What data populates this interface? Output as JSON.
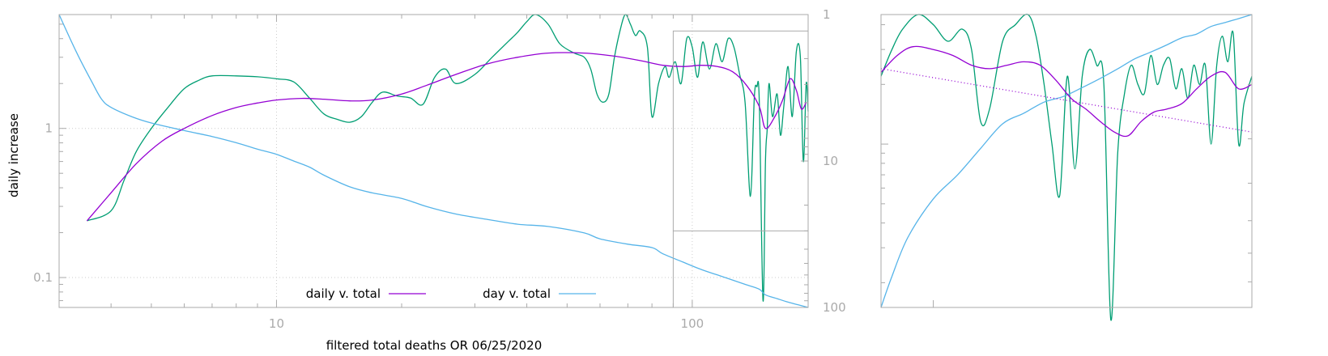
{
  "chart_data": [
    {
      "type": "line",
      "xlabel": "filtered total deaths OR 06/25/2020",
      "ylabel": "daily increase",
      "x_scale": "log",
      "y_scale": "log",
      "xlim": [
        3,
        190
      ],
      "ylim": [
        0.063,
        5.8
      ],
      "y2_scale": "log",
      "y2_reversed": true,
      "y2lim": [
        1,
        100
      ],
      "x_tick_labels": [
        "10",
        "100"
      ],
      "y_tick_labels": [
        "1",
        "0.1"
      ],
      "y2_tick_labels": [
        "1",
        "10",
        "100"
      ],
      "grid": true,
      "legend_position": "bottom-center",
      "legend": [
        "daily v. total",
        "day v. total"
      ],
      "colors": {
        "daily": "#9400d3",
        "day": "#56b4e9",
        "raw": "#009e73",
        "frame": "#aaaaaa",
        "grid": "#cccccc"
      },
      "series": [
        {
          "name": "daily v. total",
          "axis": "y",
          "x": [
            3.5,
            4.0,
            4.6,
            5.3,
            6.0,
            7.0,
            8.0,
            9.0,
            10.0,
            11.5,
            13.0,
            15.0,
            17.0,
            20.0,
            23.0,
            27.0,
            32.0,
            38.0,
            45.0,
            55.0,
            65.0,
            75.0,
            85.0,
            95.0,
            105.0,
            115.0,
            125.0,
            135.0,
            145.0,
            150.0,
            158.0,
            165.0,
            172.0,
            178.0,
            183.0,
            188.0
          ],
          "y": [
            0.24,
            0.37,
            0.58,
            0.82,
            1.0,
            1.22,
            1.38,
            1.48,
            1.55,
            1.59,
            1.57,
            1.53,
            1.55,
            1.7,
            1.95,
            2.3,
            2.7,
            3.0,
            3.2,
            3.2,
            3.05,
            2.85,
            2.65,
            2.6,
            2.65,
            2.6,
            2.4,
            1.95,
            1.4,
            1.0,
            1.2,
            1.55,
            2.15,
            1.8,
            1.35,
            1.5
          ]
        },
        {
          "name": "day v. total",
          "axis": "y2",
          "x": [
            3.0,
            3.3,
            3.6,
            3.8,
            4.0,
            4.5,
            5.0,
            6.0,
            7.0,
            8.0,
            9.0,
            10.0,
            11.0,
            12.0,
            13.0,
            15.0,
            17.0,
            20.0,
            23.0,
            27.0,
            32.0,
            38.0,
            45.0,
            55.0,
            60.0,
            70.0,
            80.0,
            85.0,
            95.0,
            105.0,
            115.0,
            125.0,
            135.0,
            145.0,
            150.0,
            160.0,
            170.0,
            180.0,
            190.0
          ],
          "y": [
            1.0,
            1.8,
            2.9,
            3.8,
            4.3,
            5.0,
            5.5,
            6.2,
            6.8,
            7.5,
            8.3,
            9.0,
            10.0,
            11.0,
            12.5,
            15.0,
            16.5,
            18.0,
            20.5,
            23.0,
            25.0,
            27.0,
            28.0,
            31.0,
            34.0,
            37.0,
            39.0,
            43.0,
            49.0,
            55.0,
            60.0,
            65.0,
            70.0,
            75.0,
            82.0,
            87.0,
            92.0,
            96.0,
            100.0
          ]
        },
        {
          "name": "",
          "axis": "y",
          "x": [
            3.5,
            4.0,
            4.3,
            4.6,
            5.0,
            5.5,
            6.0,
            6.5,
            7.0,
            8.0,
            9.0,
            10.0,
            11.0,
            12.0,
            13.0,
            14.0,
            15.0,
            16.0,
            17.0,
            18.0,
            19.5,
            21.0,
            22.5,
            24.0,
            25.5,
            27.0,
            30.0,
            33.0,
            36.0,
            38.0,
            40.0,
            42.0,
            45.0,
            48.0,
            52.0,
            55.0,
            57.0,
            59.0,
            61.0,
            63.0,
            65.0,
            67.0,
            69.0,
            71.0,
            73.0,
            75.0,
            78.0,
            80.0,
            83.0,
            86.0,
            88.0,
            91.0,
            94.0,
            97.0,
            100.0,
            103.0,
            106.0,
            110.0,
            114.0,
            118.0,
            122.0,
            126.0,
            130.0,
            134.0,
            138.0,
            141.0,
            143.0,
            145.0,
            148.0,
            150.0,
            151.5,
            153.0,
            156.0,
            160.0,
            163.0,
            166.0,
            170.0,
            174.0,
            178.0,
            182.0,
            185.0,
            188.0,
            190.0
          ],
          "y": [
            0.24,
            0.28,
            0.45,
            0.7,
            1.0,
            1.4,
            1.85,
            2.1,
            2.25,
            2.25,
            2.22,
            2.15,
            2.05,
            1.6,
            1.25,
            1.15,
            1.1,
            1.2,
            1.5,
            1.75,
            1.65,
            1.6,
            1.45,
            2.2,
            2.5,
            2.0,
            2.3,
            3.0,
            3.8,
            4.4,
            5.2,
            5.8,
            5.0,
            3.7,
            3.2,
            3.0,
            2.5,
            1.7,
            1.5,
            1.7,
            3.0,
            4.5,
            5.8,
            5.0,
            4.2,
            4.5,
            3.5,
            1.2,
            2.0,
            2.6,
            2.2,
            2.8,
            2.0,
            4.0,
            3.5,
            2.2,
            3.8,
            2.5,
            3.7,
            2.8,
            4.0,
            3.5,
            2.3,
            1.5,
            0.35,
            1.6,
            1.9,
            1.5,
            0.07,
            0.6,
            1.0,
            2.0,
            1.2,
            1.7,
            0.9,
            1.4,
            2.6,
            1.2,
            3.3,
            3.0,
            0.6,
            2.0,
            1.3
          ]
        }
      ]
    },
    {
      "type": "line",
      "x_scale": "log",
      "y_scale": "log",
      "xlim": [
        90,
        190
      ],
      "ylim": [
        0.15,
        4.5
      ],
      "y2_scale": "log",
      "y2_reversed": true,
      "y2lim": [
        30,
        100
      ],
      "series": [
        {
          "name": "",
          "axis": "y",
          "x": [
            90,
            93,
            96,
            100,
            104,
            108,
            112,
            116,
            120,
            124,
            128,
            132,
            136,
            140,
            144,
            148,
            152,
            156,
            160,
            165,
            170,
            175,
            180,
            185,
            190
          ],
          "y": [
            2.3,
            2.8,
            3.1,
            3.0,
            2.8,
            2.5,
            2.4,
            2.5,
            2.6,
            2.5,
            2.1,
            1.7,
            1.5,
            1.3,
            1.15,
            1.1,
            1.3,
            1.45,
            1.5,
            1.6,
            1.9,
            2.2,
            2.3,
            1.9,
            2.0
          ]
        },
        {
          "name": "",
          "axis": "y2",
          "x": [
            90,
            92,
            95,
            100,
            105,
            110,
            115,
            120,
            125,
            130,
            135,
            140,
            145,
            150,
            155,
            160,
            165,
            170,
            175,
            180,
            185,
            190
          ],
          "y": [
            100,
            88,
            75,
            64,
            58,
            52,
            47,
            45,
            43,
            42,
            40.5,
            39,
            37.5,
            36,
            35,
            34,
            33,
            32.5,
            31.5,
            31,
            30.5,
            30
          ]
        },
        {
          "name": "",
          "axis": "y",
          "x": [
            90,
            92,
            94,
            97,
            100,
            103,
            106,
            108,
            110,
            112,
            115,
            118,
            121,
            123,
            125,
            127,
            129,
            131,
            133,
            135,
            137,
            139,
            141,
            143,
            145,
            147,
            149,
            151,
            153,
            155,
            157,
            159,
            161,
            163,
            165,
            167,
            169,
            171,
            173,
            175,
            177,
            179,
            181,
            183,
            185,
            187,
            190
          ],
          "y": [
            2.2,
            3.0,
            3.8,
            4.5,
            4.0,
            3.3,
            3.8,
            3.0,
            1.3,
            1.5,
            3.3,
            4.0,
            4.5,
            3.5,
            2.0,
            1.0,
            0.55,
            2.2,
            0.75,
            2.2,
            3.0,
            2.5,
            2.0,
            0.13,
            0.9,
            1.8,
            2.5,
            2.0,
            1.8,
            2.8,
            2.0,
            2.5,
            2.7,
            1.9,
            2.4,
            1.7,
            2.5,
            2.0,
            2.5,
            1.0,
            2.5,
            3.5,
            2.6,
            3.6,
            1.0,
            1.6,
            2.2
          ]
        },
        {
          "name": "",
          "axis": "y",
          "style": "dotted",
          "x": [
            90,
            190
          ],
          "y": [
            2.4,
            1.15
          ]
        }
      ]
    }
  ]
}
